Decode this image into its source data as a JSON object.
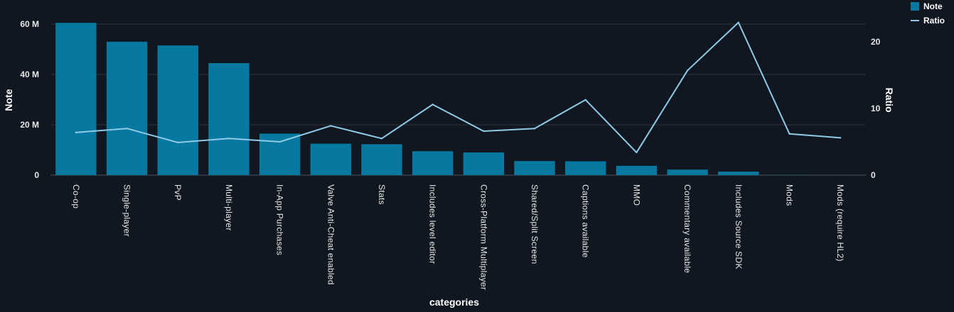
{
  "chart_data": {
    "type": "bar",
    "categories": [
      "Co-op",
      "Single-player",
      "PvP",
      "Multi-player",
      "In-App Purchases",
      "Valve Anti-Cheat enabled",
      "Stats",
      "Includes level editor",
      "Cross-Platform Multiplayer",
      "Shared/Split Screen",
      "Captions available",
      "MMO",
      "Commentary available",
      "Includes Source SDK",
      "Mods",
      "Mods (require HL2)"
    ],
    "series": [
      {
        "name": "Note",
        "type": "bar",
        "axis": "left",
        "color": "#0779a0",
        "values": [
          60500000,
          53000000,
          51500000,
          44500000,
          16500000,
          12500000,
          12300000,
          9500000,
          9000000,
          5600000,
          5500000,
          3700000,
          2200000,
          1400000,
          60000,
          30000
        ]
      },
      {
        "name": "Ratio",
        "type": "line",
        "axis": "right",
        "color": "#8ecae6",
        "values": [
          6.4,
          7.0,
          4.9,
          5.5,
          5.0,
          7.4,
          5.5,
          10.6,
          6.6,
          7.0,
          11.3,
          3.4,
          15.7,
          22.9,
          6.2,
          5.6
        ]
      }
    ],
    "xlabel": "categories",
    "ylabel": "Note",
    "y2label": "Ratio",
    "ylim": [
      0,
      60000000
    ],
    "y2lim": [
      0,
      24
    ],
    "yticks": [
      {
        "value": 0,
        "label": "0"
      },
      {
        "value": 20000000,
        "label": "20 M"
      },
      {
        "value": 40000000,
        "label": "40 M"
      },
      {
        "value": 60000000,
        "label": "60 M"
      }
    ],
    "y2ticks": [
      {
        "value": 0,
        "label": "0"
      },
      {
        "value": 10,
        "label": "10"
      },
      {
        "value": 20,
        "label": "20"
      }
    ],
    "grid": true,
    "legend": "top-right",
    "legend_items": [
      {
        "name": "Note",
        "kind": "square"
      },
      {
        "name": "Ratio",
        "kind": "line"
      }
    ]
  }
}
